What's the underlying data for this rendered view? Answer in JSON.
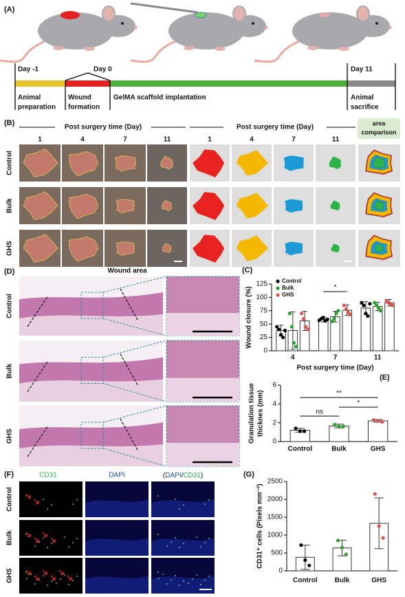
{
  "panel_a": {
    "label": "(A)",
    "days": [
      "Day -1",
      "Day 0",
      "Day 11"
    ],
    "stages": [
      [
        "Animal",
        "preparation"
      ],
      [
        "Wound",
        "formation"
      ],
      [
        "GelMA scaffold implantation"
      ],
      [
        "Animal",
        "sacrifice"
      ]
    ]
  },
  "panel_b": {
    "label": "(B)",
    "header": "Post surgery time (Day)",
    "days": [
      "1",
      "4",
      "7",
      "11"
    ],
    "comparison": [
      "area",
      "comparison"
    ],
    "rows": [
      "Control",
      "Bulk",
      "GHS"
    ]
  },
  "panel_d": {
    "label": "(D)",
    "title": "Wound area",
    "rows": [
      "Control",
      "Bulk",
      "GHS"
    ]
  },
  "panel_f": {
    "label": "(F)",
    "channels": [
      "CD31",
      "DAPI"
    ],
    "merge": [
      "(",
      "DAPI",
      "/",
      "CD31",
      ")"
    ],
    "rows": [
      "Control",
      "Bulk",
      "GHS"
    ]
  },
  "chart_data": [
    {
      "type": "bar",
      "panel_label": "(C)",
      "ylabel": "Wound closure (%)",
      "xlabel": "Post surgery time (Day)",
      "categories": [
        "4",
        "7",
        "11"
      ],
      "ylim": [
        0,
        125
      ],
      "yticks": [
        0,
        25,
        50,
        75,
        100,
        125
      ],
      "annotations": [
        "*"
      ],
      "series": [
        {
          "name": "Control",
          "color": "#000000",
          "values": [
            38,
            59,
            80
          ],
          "errors": [
            10,
            5,
            12
          ],
          "points": [
            [
              45,
              40,
              30,
              25,
              38
            ],
            [
              57,
              60,
              62,
              56,
              59
            ],
            [
              90,
              85,
              70,
              65,
              88
            ]
          ]
        },
        {
          "name": "Bulk",
          "color": "#2ca02c",
          "values": [
            38,
            64,
            83
          ],
          "errors": [
            35,
            10,
            8
          ],
          "points": [
            [
              70,
              45,
              15,
              8
            ],
            [
              55,
              60,
              70,
              75
            ],
            [
              90,
              85,
              80,
              75
            ]
          ]
        },
        {
          "name": "GHS",
          "color": "#d9534f",
          "values": [
            56,
            76,
            90
          ],
          "errors": [
            18,
            10,
            6
          ],
          "points": [
            [
              70,
              60,
              45,
              40
            ],
            [
              85,
              78,
              72,
              68
            ],
            [
              94,
              90,
              88,
              85
            ]
          ]
        }
      ]
    },
    {
      "type": "bar",
      "panel_label": "(E)",
      "ylabel": [
        "Granulation tissue",
        "thicknes (mm)"
      ],
      "categories": [
        "Control",
        "Bulk",
        "GHS"
      ],
      "ylim": [
        0,
        6
      ],
      "yticks": [
        0,
        2,
        4,
        6
      ],
      "annotations": [
        "ns",
        "**",
        "*"
      ],
      "values": [
        1.2,
        1.65,
        2.2
      ],
      "errors": [
        0.2,
        0.2,
        0.15
      ],
      "colors": [
        "#000000",
        "#2ca02c",
        "#d9534f"
      ],
      "points": [
        [
          1.4,
          1.1,
          1.1
        ],
        [
          1.8,
          1.6,
          1.6
        ],
        [
          2.3,
          2.2,
          2.1
        ]
      ]
    },
    {
      "type": "bar",
      "panel_label": "(G)",
      "ylabel": "CD31⁺ cells (Pixels mm⁻²)",
      "categories": [
        "Control",
        "Bulk",
        "GHS"
      ],
      "ylim": [
        0,
        2500
      ],
      "yticks": [
        0,
        500,
        1000,
        1500,
        2000,
        2500
      ],
      "values": [
        380,
        640,
        1330
      ],
      "errors": [
        340,
        220,
        710
      ],
      "colors": [
        "#000000",
        "#2ca02c",
        "#d9534f"
      ],
      "points": [
        [
          720,
          300,
          150
        ],
        [
          850,
          650,
          460
        ],
        [
          2150,
          1250,
          920
        ]
      ]
    }
  ]
}
